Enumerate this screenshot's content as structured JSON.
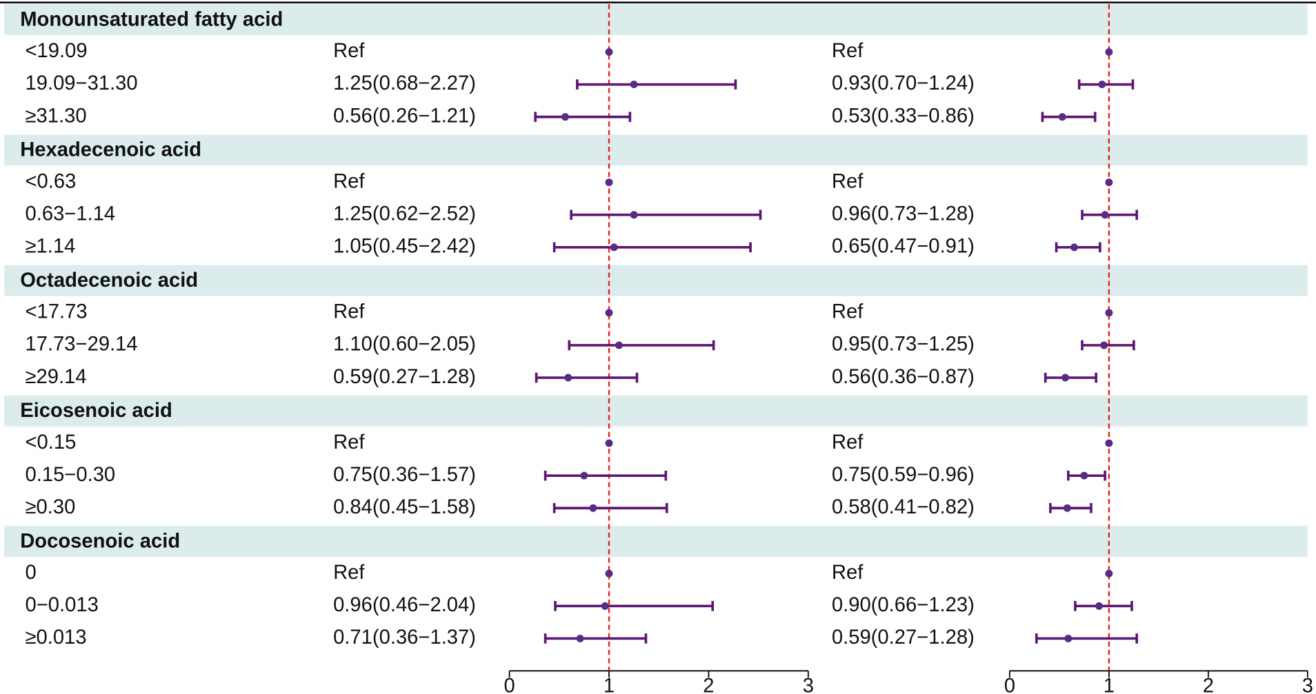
{
  "chart_data": {
    "type": "forest",
    "groups": [
      {
        "name": "Monounsaturated fatty acid",
        "categories": [
          "<19.09",
          "19.09−31.30",
          "≥31.30"
        ]
      },
      {
        "name": "Hexadecenoic acid",
        "categories": [
          "<0.63",
          "0.63−1.14",
          "≥1.14"
        ]
      },
      {
        "name": "Octadecenoic acid",
        "categories": [
          "<17.73",
          "17.73−29.14",
          "≥29.14"
        ]
      },
      {
        "name": "Eicosenoic acid",
        "categories": [
          "<0.15",
          "0.15−0.30",
          "≥0.30"
        ]
      },
      {
        "name": "Docosenoic acid",
        "categories": [
          "0",
          "0−0.013",
          "≥0.013"
        ]
      }
    ],
    "point_color": "#5b2a86",
    "line_color": "#5e1673",
    "reference_color": "#e8201c",
    "band_color": "#dcecec",
    "panels": [
      {
        "xlim": [
          0,
          3
        ],
        "xticks": [
          0,
          1,
          2,
          3
        ],
        "reference": 1,
        "values": [
          1,
          1.25,
          0.56,
          1,
          1.25,
          1.05,
          1,
          1.1,
          0.59,
          1,
          0.75,
          0.84,
          1,
          0.96,
          0.71
        ],
        "lower": [
          null,
          0.68,
          0.26,
          null,
          0.62,
          0.45,
          null,
          0.6,
          0.27,
          null,
          0.36,
          0.45,
          null,
          0.46,
          0.36
        ],
        "upper": [
          null,
          2.27,
          1.21,
          null,
          2.52,
          2.42,
          null,
          2.05,
          1.28,
          null,
          1.57,
          1.58,
          null,
          2.04,
          1.37
        ],
        "value_labels": [
          "Ref",
          "1.25(0.68−2.27)",
          "0.56(0.26−1.21)",
          "Ref",
          "1.25(0.62−2.52)",
          "1.05(0.45−2.42)",
          "Ref",
          "1.10(0.60−2.05)",
          "0.59(0.27−1.28)",
          "Ref",
          "0.75(0.36−1.57)",
          "0.84(0.45−1.58)",
          "Ref",
          "0.96(0.46−2.04)",
          "0.71(0.36−1.37)"
        ]
      },
      {
        "xlim": [
          0,
          3
        ],
        "xticks": [
          0,
          1,
          2,
          3
        ],
        "reference": 1,
        "values": [
          1,
          0.93,
          0.53,
          1,
          0.96,
          0.65,
          1,
          0.95,
          0.56,
          1,
          0.75,
          0.58,
          1,
          0.9,
          0.59
        ],
        "lower": [
          null,
          0.7,
          0.33,
          null,
          0.73,
          0.47,
          null,
          0.73,
          0.36,
          null,
          0.59,
          0.41,
          null,
          0.66,
          0.27
        ],
        "upper": [
          null,
          1.24,
          0.86,
          null,
          1.28,
          0.91,
          null,
          1.25,
          0.87,
          null,
          0.96,
          0.82,
          null,
          1.23,
          1.28
        ],
        "value_labels": [
          "Ref",
          "0.93(0.70−1.24)",
          "0.53(0.33−0.86)",
          "Ref",
          "0.96(0.73−1.28)",
          "0.65(0.47−0.91)",
          "Ref",
          "0.95(0.73−1.25)",
          "0.56(0.36−0.87)",
          "Ref",
          "0.75(0.59−0.96)",
          "0.58(0.41−0.82)",
          "Ref",
          "0.90(0.66−1.23)",
          "0.59(0.27−1.28)"
        ]
      }
    ]
  }
}
